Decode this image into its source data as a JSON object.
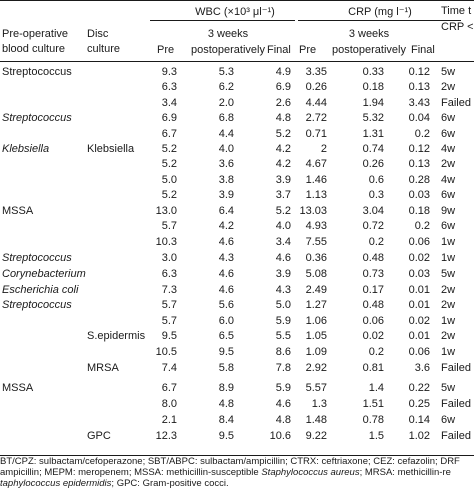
{
  "header": {
    "wbc_label": "WBC (×10³ μl⁻¹)",
    "crp_label": "CRP (mg l⁻¹)",
    "time_label_1": "Time t",
    "time_label_2": "CRP <",
    "preop_1": "Pre-operative",
    "preop_2": "blood culture",
    "disc_1": "Disc",
    "disc_2": "culture",
    "wbc_pre": "Pre",
    "wbc_3w_1": "3 weeks",
    "wbc_3w_2": "postoperatively",
    "wbc_final": "Final",
    "crp_pre": "Pre",
    "crp_3w_1": "3 weeks",
    "crp_3w_2": "postoperatively",
    "crp_final": "Final"
  },
  "rows": [
    {
      "blood": "Streptococcus",
      "blood_italic": false,
      "disc": "",
      "wbc_pre": "9.3",
      "wbc_3w": "5.3",
      "wbc_final": "4.9",
      "crp_pre": "3.35",
      "crp_3w": "0.33",
      "crp_final": "0.12",
      "time": "5w"
    },
    {
      "blood": "",
      "blood_italic": false,
      "disc": "",
      "wbc_pre": "6.3",
      "wbc_3w": "6.2",
      "wbc_final": "6.9",
      "crp_pre": "0.26",
      "crp_3w": "0.18",
      "crp_final": "0.13",
      "time": "2w"
    },
    {
      "blood": "",
      "blood_italic": false,
      "disc": "",
      "wbc_pre": "3.4",
      "wbc_3w": "2.0",
      "wbc_final": "2.6",
      "crp_pre": "4.44",
      "crp_3w": "1.94",
      "crp_final": "3.43",
      "time": "Failed"
    },
    {
      "blood": "Streptococcus",
      "blood_italic": true,
      "disc": "",
      "wbc_pre": "6.9",
      "wbc_3w": "6.8",
      "wbc_final": "4.8",
      "crp_pre": "2.72",
      "crp_3w": "5.32",
      "crp_final": "0.04",
      "time": "6w"
    },
    {
      "blood": "",
      "blood_italic": false,
      "disc": "",
      "wbc_pre": "6.7",
      "wbc_3w": "4.4",
      "wbc_final": "5.2",
      "crp_pre": "0.71",
      "crp_3w": "1.31",
      "crp_final": "0.2",
      "time": "6w"
    },
    {
      "blood": "Klebsiella",
      "blood_italic": true,
      "disc": "Klebsiella",
      "wbc_pre": "5.2",
      "wbc_3w": "4.0",
      "wbc_final": "4.2",
      "crp_pre": "2",
      "crp_3w": "0.74",
      "crp_final": "0.12",
      "time": "4w"
    },
    {
      "blood": "",
      "blood_italic": false,
      "disc": "",
      "wbc_pre": "5.2",
      "wbc_3w": "3.6",
      "wbc_final": "4.2",
      "crp_pre": "4.67",
      "crp_3w": "0.26",
      "crp_final": "0.13",
      "time": "2w"
    },
    {
      "blood": "",
      "blood_italic": false,
      "disc": "",
      "wbc_pre": "5.0",
      "wbc_3w": "3.8",
      "wbc_final": "3.9",
      "crp_pre": "1.46",
      "crp_3w": "0.6",
      "crp_final": "0.28",
      "time": "4w"
    },
    {
      "blood": "",
      "blood_italic": false,
      "disc": "",
      "wbc_pre": "5.2",
      "wbc_3w": "3.9",
      "wbc_final": "3.7",
      "crp_pre": "1.13",
      "crp_3w": "0.3",
      "crp_final": "0.03",
      "time": "6w"
    },
    {
      "blood": "MSSA",
      "blood_italic": false,
      "disc": "",
      "wbc_pre": "13.0",
      "wbc_3w": "6.4",
      "wbc_final": "5.2",
      "crp_pre": "13.03",
      "crp_3w": "3.04",
      "crp_final": "0.18",
      "time": "9w"
    },
    {
      "blood": "",
      "blood_italic": false,
      "disc": "",
      "wbc_pre": "5.7",
      "wbc_3w": "4.2",
      "wbc_final": "4.0",
      "crp_pre": "4.93",
      "crp_3w": "0.72",
      "crp_final": "0.2",
      "time": "6w"
    },
    {
      "blood": "",
      "blood_italic": false,
      "disc": "",
      "wbc_pre": "10.3",
      "wbc_3w": "4.6",
      "wbc_final": "3.4",
      "crp_pre": "7.55",
      "crp_3w": "0.2",
      "crp_final": "0.06",
      "time": "1w"
    },
    {
      "blood": "Streptococcus",
      "blood_italic": true,
      "disc": "",
      "wbc_pre": "3.0",
      "wbc_3w": "4.3",
      "wbc_final": "4.6",
      "crp_pre": "0.36",
      "crp_3w": "0.48",
      "crp_final": "0.02",
      "time": "1w"
    },
    {
      "blood": "Corynebacterium",
      "blood_italic": true,
      "disc": "",
      "wbc_pre": "6.3",
      "wbc_3w": "4.6",
      "wbc_final": "3.9",
      "crp_pre": "5.08",
      "crp_3w": "0.73",
      "crp_final": "0.03",
      "time": "5w"
    },
    {
      "blood": "Escherichia coli",
      "blood_italic": true,
      "disc": "",
      "wbc_pre": "7.3",
      "wbc_3w": "4.6",
      "wbc_final": "4.3",
      "crp_pre": "2.49",
      "crp_3w": "0.17",
      "crp_final": "0.01",
      "time": "2w"
    },
    {
      "blood": "Streptococcus",
      "blood_italic": true,
      "disc": "",
      "wbc_pre": "5.7",
      "wbc_3w": "5.6",
      "wbc_final": "5.0",
      "crp_pre": "1.27",
      "crp_3w": "0.48",
      "crp_final": "0.01",
      "time": "2w"
    },
    {
      "blood": "",
      "blood_italic": false,
      "disc": "",
      "wbc_pre": "5.7",
      "wbc_3w": "6.0",
      "wbc_final": "5.9",
      "crp_pre": "1.06",
      "crp_3w": "0.06",
      "crp_final": "0.02",
      "time": "1w"
    },
    {
      "blood": "",
      "blood_italic": false,
      "disc": "S.epidermis",
      "wbc_pre": "9.5",
      "wbc_3w": "6.5",
      "wbc_final": "5.5",
      "crp_pre": "1.05",
      "crp_3w": "0.02",
      "crp_final": "0.01",
      "time": "2w"
    },
    {
      "blood": "",
      "blood_italic": false,
      "disc": "",
      "wbc_pre": "10.5",
      "wbc_3w": "9.5",
      "wbc_final": "8.6",
      "crp_pre": "1.09",
      "crp_3w": "0.2",
      "crp_final": "0.06",
      "time": "1w"
    },
    {
      "blood": "",
      "blood_italic": false,
      "disc": "MRSA",
      "wbc_pre": "7.4",
      "wbc_3w": "5.8",
      "wbc_final": "7.8",
      "crp_pre": "2.92",
      "crp_3w": "0.81",
      "crp_final": "3.6",
      "time": "Failed"
    },
    {
      "blood": "MSSA",
      "blood_italic": false,
      "disc": "",
      "wbc_pre": "6.7",
      "wbc_3w": "8.9",
      "wbc_final": "5.9",
      "crp_pre": "5.57",
      "crp_3w": "1.4",
      "crp_final": "0.22",
      "time": "5w"
    },
    {
      "blood": "",
      "blood_italic": false,
      "disc": "",
      "wbc_pre": "8.0",
      "wbc_3w": "4.8",
      "wbc_final": "4.6",
      "crp_pre": "1.3",
      "crp_3w": "1.51",
      "crp_final": "0.25",
      "time": "Failed"
    },
    {
      "blood": "",
      "blood_italic": false,
      "disc": "",
      "wbc_pre": "2.1",
      "wbc_3w": "8.4",
      "wbc_final": "4.8",
      "crp_pre": "1.48",
      "crp_3w": "0.78",
      "crp_final": "0.14",
      "time": "6w"
    },
    {
      "blood": "",
      "blood_italic": false,
      "disc": "GPC",
      "wbc_pre": "12.3",
      "wbc_3w": "9.5",
      "wbc_final": "10.6",
      "crp_pre": "9.22",
      "crp_3w": "1.5",
      "crp_final": "1.02",
      "time": "Failed"
    }
  ],
  "footnote": {
    "line1": "BT/CPZ: sulbactam/cefoperazone; SBT/ABPC: sulbactam/ampicillin; CTRX: ceftriaxone; CEZ: cefazolin; DRF",
    "line2_a": "ampicillin; MEPM: meropenem; MSSA: methicillin-susceptible ",
    "line2_b": "Staphylococcus aureus",
    "line2_c": "; MRSA: methicillin-re",
    "line3_a": "taphylococcus epidermidis",
    "line3_b": "; GPC: Gram-positive cocci."
  }
}
